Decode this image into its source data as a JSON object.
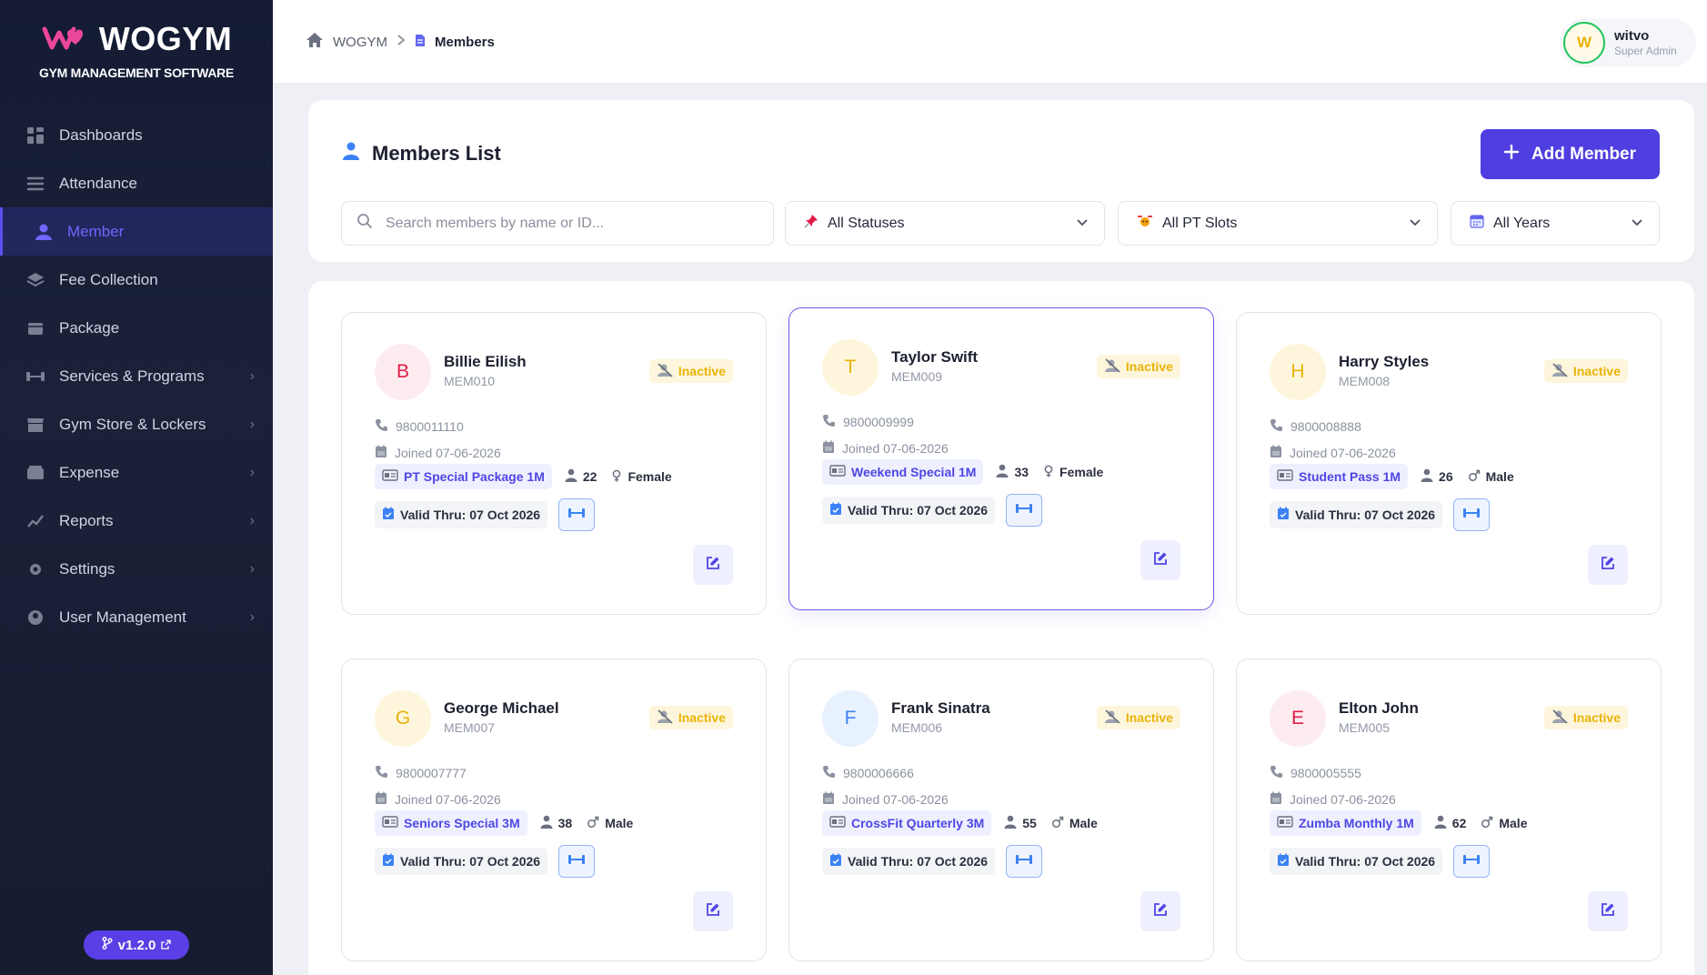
{
  "brand": {
    "name": "WOGYM",
    "subtitle": "GYM MANAGEMENT SOFTWARE"
  },
  "sidebar": {
    "items": [
      {
        "label": "Dashboards",
        "icon": "grid-icon",
        "active": false,
        "chevron": false
      },
      {
        "label": "Attendance",
        "icon": "list-icon",
        "active": false,
        "chevron": false
      },
      {
        "label": "Member",
        "icon": "user-icon",
        "active": true,
        "chevron": false
      },
      {
        "label": "Fee Collection",
        "icon": "layers-icon",
        "active": false,
        "chevron": false
      },
      {
        "label": "Package",
        "icon": "box-icon",
        "active": false,
        "chevron": false
      },
      {
        "label": "Services & Programs",
        "icon": "dumbbell-icon",
        "active": false,
        "chevron": true
      },
      {
        "label": "Gym Store & Lockers",
        "icon": "store-icon",
        "active": false,
        "chevron": true
      },
      {
        "label": "Expense",
        "icon": "wallet-icon",
        "active": false,
        "chevron": true
      },
      {
        "label": "Reports",
        "icon": "chart-icon",
        "active": false,
        "chevron": true
      },
      {
        "label": "Settings",
        "icon": "gear-icon",
        "active": false,
        "chevron": true
      },
      {
        "label": "User Management",
        "icon": "user-group-icon",
        "active": false,
        "chevron": true
      }
    ],
    "version": "v1.2.0"
  },
  "breadcrumb": {
    "home": "WOGYM",
    "current": "Members"
  },
  "user": {
    "initial": "W",
    "name": "witvo",
    "role": "Super Admin"
  },
  "header": {
    "title": "Members List",
    "add_label": "Add Member",
    "search_placeholder": "Search members by name or ID...",
    "filters": {
      "status": "All Statuses",
      "pt_slots": "All PT Slots",
      "years": "All Years"
    }
  },
  "colors": {
    "accent": "#4f3ee0",
    "inactive": "#eab308",
    "package": "#4f46e5"
  },
  "members": [
    {
      "initial": "B",
      "name": "Billie Eilish",
      "id": "MEM010",
      "status": "Inactive",
      "phone": "9800011110",
      "joined": "Joined 07-06-2026",
      "package": "PT Special Package 1M",
      "age": "22",
      "gender": "Female",
      "valid": "Valid Thru: 07 Oct 2026"
    },
    {
      "initial": "T",
      "name": "Taylor Swift",
      "id": "MEM009",
      "status": "Inactive",
      "phone": "9800009999",
      "joined": "Joined 07-06-2026",
      "package": "Weekend Special 1M",
      "age": "33",
      "gender": "Female",
      "valid": "Valid Thru: 07 Oct 2026"
    },
    {
      "initial": "H",
      "name": "Harry Styles",
      "id": "MEM008",
      "status": "Inactive",
      "phone": "9800008888",
      "joined": "Joined 07-06-2026",
      "package": "Student Pass 1M",
      "age": "26",
      "gender": "Male",
      "valid": "Valid Thru: 07 Oct 2026"
    },
    {
      "initial": "G",
      "name": "George Michael",
      "id": "MEM007",
      "status": "Inactive",
      "phone": "9800007777",
      "joined": "Joined 07-06-2026",
      "package": "Seniors Special 3M",
      "age": "38",
      "gender": "Male",
      "valid": "Valid Thru: 07 Oct 2026"
    },
    {
      "initial": "F",
      "name": "Frank Sinatra",
      "id": "MEM006",
      "status": "Inactive",
      "phone": "9800006666",
      "joined": "Joined 07-06-2026",
      "package": "CrossFit Quarterly 3M",
      "age": "55",
      "gender": "Male",
      "valid": "Valid Thru: 07 Oct 2026"
    },
    {
      "initial": "E",
      "name": "Elton John",
      "id": "MEM005",
      "status": "Inactive",
      "phone": "9800005555",
      "joined": "Joined 07-06-2026",
      "package": "Zumba Monthly 1M",
      "age": "62",
      "gender": "Male",
      "valid": "Valid Thru: 07 Oct 2026"
    }
  ]
}
